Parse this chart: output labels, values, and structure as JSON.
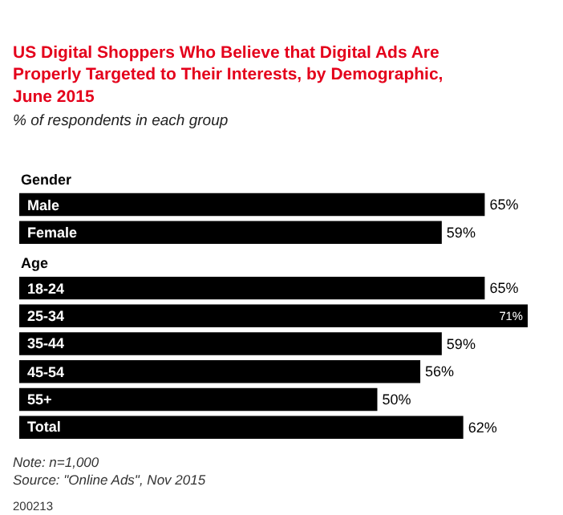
{
  "chart_data": {
    "type": "bar",
    "orientation": "horizontal",
    "title": "US Digital Shoppers Who Believe that Digital Ads Are Properly Targeted to Their Interests, by Demographic, June 2015",
    "subtitle": "% of respondents in each group",
    "categories": [
      "Gender",
      "Male",
      "Female",
      "Age",
      "18-24",
      "25-34",
      "35-44",
      "45-54",
      "55+",
      "Total"
    ],
    "values": [
      null,
      65,
      59,
      null,
      65,
      71,
      59,
      56,
      50,
      62
    ],
    "value_labels": [
      null,
      "65%",
      "59%",
      null,
      "65%",
      "71%",
      "59%",
      "56%",
      "50%",
      "62%"
    ],
    "color": "#000000",
    "annotations": [
      "Note: n=1,000",
      "Source: \"Online Ads\", Nov 2015",
      "200213"
    ],
    "legend": false
  }
}
